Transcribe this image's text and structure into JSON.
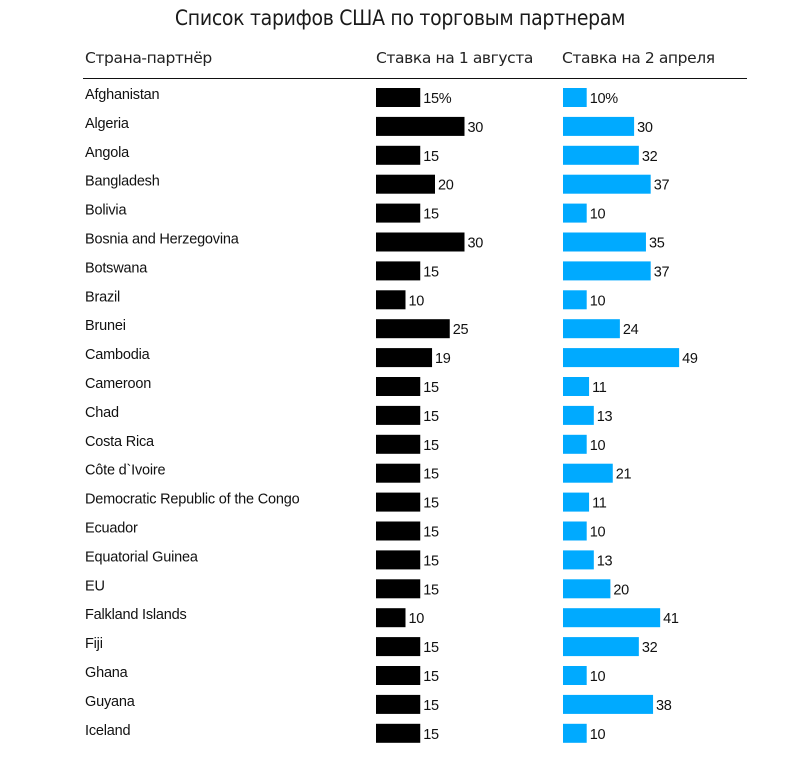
{
  "colors": {
    "aug_bar": "#000000",
    "apr_bar": "#00aaff",
    "text": "#111111"
  },
  "chart_data": {
    "type": "bar",
    "orientation": "horizontal",
    "title": "Список тарифов США по торговым партнерам",
    "columns": {
      "country": "Страна-партнёр",
      "aug": "Ставка на 1 августа",
      "apr": "Ставка на 2 апреля"
    },
    "unit_suffix_first_row": "%",
    "categories": [
      "Afghanistan",
      "Algeria",
      "Angola",
      "Bangladesh",
      "Bolivia",
      "Bosnia and Herzegovina",
      "Botswana",
      "Brazil",
      "Brunei",
      "Cambodia",
      "Cameroon",
      "Chad",
      "Costa Rica",
      "Côte d`Ivoire",
      "Democratic Republic of the Congo",
      "Ecuador",
      "Equatorial Guinea",
      "EU",
      "Falkland Islands",
      "Fiji",
      "Ghana",
      "Guyana",
      "Iceland"
    ],
    "series": [
      {
        "name": "Ставка на 1 августа",
        "color": "#000000",
        "values": [
          15,
          30,
          15,
          20,
          15,
          30,
          15,
          10,
          25,
          19,
          15,
          15,
          15,
          15,
          15,
          15,
          15,
          15,
          10,
          15,
          15,
          15,
          15
        ]
      },
      {
        "name": "Ставка на 2 апреля",
        "color": "#00aaff",
        "values": [
          10,
          30,
          32,
          37,
          10,
          35,
          37,
          10,
          24,
          49,
          11,
          13,
          10,
          21,
          11,
          10,
          13,
          20,
          41,
          32,
          10,
          38,
          10
        ]
      }
    ],
    "xlabel": "",
    "ylabel": "",
    "grid": false,
    "legend": "none"
  }
}
